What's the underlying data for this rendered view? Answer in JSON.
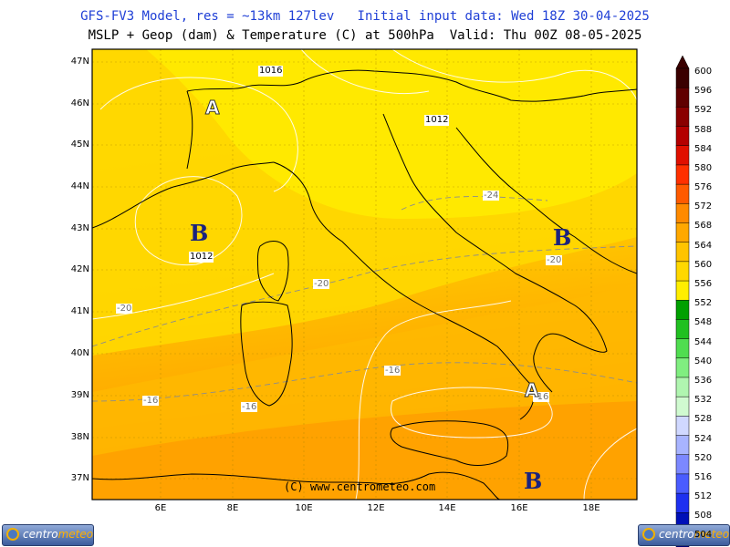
{
  "header": {
    "line1": "GFS-FV3 Model, res = ~13km 127lev   Initial input data: Wed 18Z 30-04-2025",
    "line2": "MSLP + Geop (dam) & Temperature (C) at 500hPa  Valid: Thu 00Z 08-05-2025"
  },
  "axes": {
    "latitudes": [
      "47N",
      "46N",
      "45N",
      "44N",
      "43N",
      "42N",
      "41N",
      "40N",
      "39N",
      "38N",
      "37N"
    ],
    "longitudes": [
      "6E",
      "8E",
      "10E",
      "12E",
      "14E",
      "16E",
      "18E"
    ]
  },
  "pressure_labels": [
    {
      "text": "1016"
    },
    {
      "text": "1012"
    },
    {
      "text": "1012"
    }
  ],
  "temperature_labels": [
    {
      "text": "-24"
    },
    {
      "text": "-20"
    },
    {
      "text": "-20"
    },
    {
      "text": "-20"
    },
    {
      "text": "-16"
    },
    {
      "text": "-16"
    },
    {
      "text": "-16"
    },
    {
      "text": "-16"
    }
  ],
  "pressure_systems": [
    {
      "symbol": "B",
      "kind": "low"
    },
    {
      "symbol": "B",
      "kind": "low"
    },
    {
      "symbol": "B",
      "kind": "low"
    },
    {
      "symbol": "A",
      "kind": "high"
    },
    {
      "symbol": "A",
      "kind": "high"
    }
  ],
  "colorbar": {
    "labels": [
      "600",
      "596",
      "592",
      "588",
      "584",
      "580",
      "576",
      "572",
      "568",
      "564",
      "560",
      "556",
      "552",
      "548",
      "544",
      "540",
      "536",
      "532",
      "528",
      "524",
      "520",
      "516",
      "512",
      "508",
      "504"
    ],
    "colors": [
      "#3a0000",
      "#600000",
      "#8a0000",
      "#b40000",
      "#e01000",
      "#ff3000",
      "#ff5a00",
      "#ff8a00",
      "#ffa800",
      "#ffc400",
      "#ffd800",
      "#ffee00",
      "#00a000",
      "#20c020",
      "#50dd50",
      "#80ee80",
      "#b0f5b0",
      "#d0fad0",
      "#d0d8ff",
      "#a8b4ff",
      "#7c88ff",
      "#4a5cff",
      "#1e30f0",
      "#0010b8",
      "#000070"
    ],
    "unit": "dam"
  },
  "copyright": "(C) www.centrometeo.com",
  "logo": {
    "part1": "centro",
    "part2": "meteo"
  }
}
